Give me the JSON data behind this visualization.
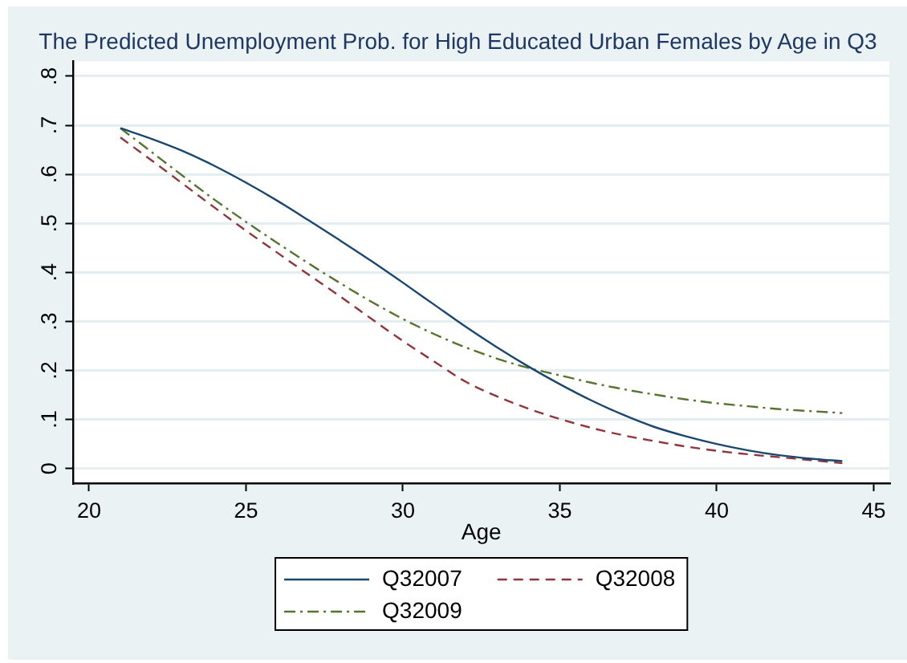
{
  "chart_data": {
    "type": "line",
    "title": "The Predicted Unemployment Prob. for High Educated Urban Females by Age in Q3",
    "xlabel": "Age",
    "x": [
      21,
      22,
      23,
      24,
      25,
      26,
      27,
      28,
      29,
      30,
      31,
      32,
      33,
      34,
      35,
      36,
      37,
      38,
      39,
      40,
      41,
      42,
      43,
      44
    ],
    "series": [
      {
        "name": "Q32007",
        "color": "#1a476f",
        "line_style": "solid",
        "values": [
          0.694,
          0.672,
          0.647,
          0.617,
          0.583,
          0.546,
          0.506,
          0.465,
          0.423,
          0.379,
          0.334,
          0.289,
          0.247,
          0.208,
          0.172,
          0.139,
          0.11,
          0.085,
          0.066,
          0.05,
          0.037,
          0.027,
          0.02,
          0.015
        ]
      },
      {
        "name": "Q32008",
        "color": "#90353b",
        "line_style": "dashed",
        "values": [
          0.675,
          0.628,
          0.58,
          0.532,
          0.485,
          0.44,
          0.395,
          0.351,
          0.305,
          0.26,
          0.218,
          0.177,
          0.147,
          0.122,
          0.101,
          0.083,
          0.068,
          0.056,
          0.045,
          0.036,
          0.029,
          0.023,
          0.017,
          0.011
        ]
      },
      {
        "name": "Q32009",
        "color": "#55752f",
        "line_style": "dashdot",
        "values": [
          0.694,
          0.645,
          0.596,
          0.548,
          0.503,
          0.46,
          0.418,
          0.378,
          0.34,
          0.305,
          0.274,
          0.247,
          0.224,
          0.205,
          0.19,
          0.175,
          0.162,
          0.151,
          0.141,
          0.133,
          0.127,
          0.121,
          0.117,
          0.113
        ]
      }
    ],
    "xlim": [
      19.5,
      45.5
    ],
    "xticks": [
      20,
      25,
      30,
      35,
      40,
      45
    ],
    "ylim": [
      -0.03,
      0.83
    ],
    "yticks": [
      0,
      {
        "value": 0.1,
        "label": ".1"
      },
      {
        "value": 0.2,
        "label": ".2"
      },
      {
        "value": 0.3,
        "label": ".3"
      },
      {
        "value": 0.4,
        "label": ".4"
      },
      {
        "value": 0.5,
        "label": ".5"
      },
      {
        "value": 0.6,
        "label": ".6"
      },
      {
        "value": 0.7,
        "label": ".7"
      },
      {
        "value": 0.8,
        "label": ".8"
      }
    ],
    "grid": "y",
    "legend": "bottom",
    "marker": "none"
  }
}
